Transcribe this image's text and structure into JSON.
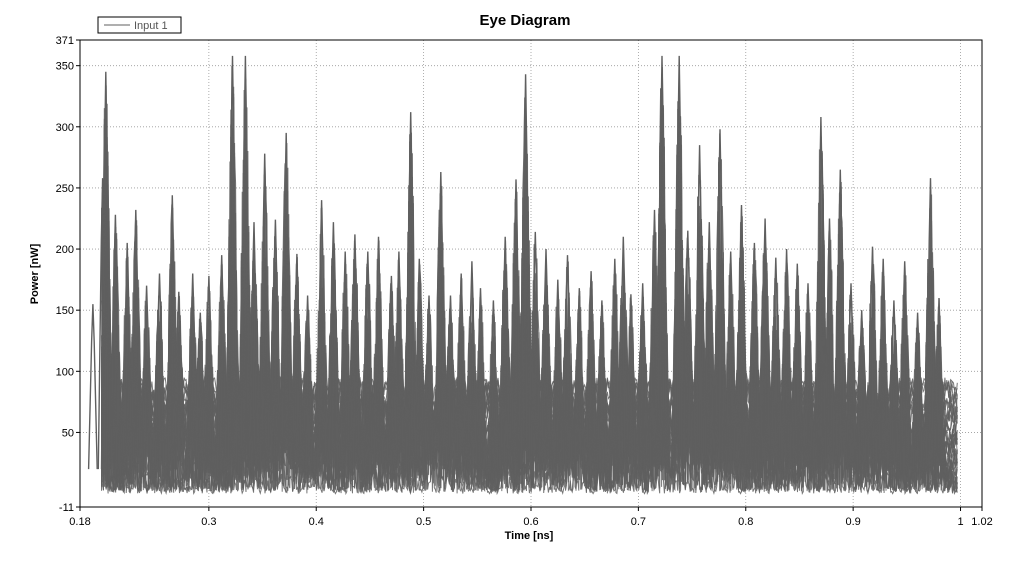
{
  "chart_data": {
    "type": "line",
    "title": "Eye Diagram",
    "xlabel": "Time [ns]",
    "ylabel": "Power [nW]",
    "xlim": [
      0.18,
      1.02
    ],
    "ylim": [
      -11,
      371
    ],
    "xticks": [
      0.18,
      0.3,
      0.4,
      0.5,
      0.6,
      0.7,
      0.8,
      0.9,
      1,
      1.02
    ],
    "xtick_labels": [
      "0.18",
      "0.3",
      "0.4",
      "0.5",
      "0.6",
      "0.7",
      "0.8",
      "0.9",
      "1",
      "1.02"
    ],
    "yticks": [
      -11,
      50,
      100,
      150,
      200,
      250,
      300,
      350,
      371
    ],
    "ytick_labels": [
      "-11",
      "50",
      "100",
      "150",
      "200",
      "250",
      "300",
      "350",
      "371"
    ],
    "grid": true,
    "legend_position": "top-left",
    "series": [
      {
        "name": "Input 1",
        "color": "#5f5f5f",
        "peaks": [
          {
            "x": 0.192,
            "y": 155
          },
          {
            "x": 0.201,
            "y": 258
          },
          {
            "x": 0.204,
            "y": 345
          },
          {
            "x": 0.213,
            "y": 228
          },
          {
            "x": 0.224,
            "y": 205
          },
          {
            "x": 0.232,
            "y": 232
          },
          {
            "x": 0.242,
            "y": 170
          },
          {
            "x": 0.254,
            "y": 180
          },
          {
            "x": 0.266,
            "y": 244
          },
          {
            "x": 0.272,
            "y": 165
          },
          {
            "x": 0.285,
            "y": 180
          },
          {
            "x": 0.292,
            "y": 148
          },
          {
            "x": 0.3,
            "y": 178
          },
          {
            "x": 0.312,
            "y": 195
          },
          {
            "x": 0.322,
            "y": 358
          },
          {
            "x": 0.334,
            "y": 358
          },
          {
            "x": 0.342,
            "y": 222
          },
          {
            "x": 0.352,
            "y": 278
          },
          {
            "x": 0.362,
            "y": 224
          },
          {
            "x": 0.372,
            "y": 295
          },
          {
            "x": 0.382,
            "y": 196
          },
          {
            "x": 0.392,
            "y": 162
          },
          {
            "x": 0.405,
            "y": 240
          },
          {
            "x": 0.416,
            "y": 222
          },
          {
            "x": 0.427,
            "y": 198
          },
          {
            "x": 0.436,
            "y": 212
          },
          {
            "x": 0.448,
            "y": 198
          },
          {
            "x": 0.458,
            "y": 210
          },
          {
            "x": 0.47,
            "y": 178
          },
          {
            "x": 0.477,
            "y": 198
          },
          {
            "x": 0.488,
            "y": 312
          },
          {
            "x": 0.496,
            "y": 192
          },
          {
            "x": 0.505,
            "y": 162
          },
          {
            "x": 0.516,
            "y": 263
          },
          {
            "x": 0.525,
            "y": 162
          },
          {
            "x": 0.535,
            "y": 180
          },
          {
            "x": 0.545,
            "y": 190
          },
          {
            "x": 0.553,
            "y": 168
          },
          {
            "x": 0.565,
            "y": 158
          },
          {
            "x": 0.576,
            "y": 210
          },
          {
            "x": 0.586,
            "y": 257
          },
          {
            "x": 0.595,
            "y": 343
          },
          {
            "x": 0.604,
            "y": 214
          },
          {
            "x": 0.614,
            "y": 200
          },
          {
            "x": 0.625,
            "y": 175
          },
          {
            "x": 0.634,
            "y": 195
          },
          {
            "x": 0.645,
            "y": 168
          },
          {
            "x": 0.656,
            "y": 182
          },
          {
            "x": 0.666,
            "y": 158
          },
          {
            "x": 0.678,
            "y": 192
          },
          {
            "x": 0.686,
            "y": 210
          },
          {
            "x": 0.693,
            "y": 163
          },
          {
            "x": 0.704,
            "y": 172
          },
          {
            "x": 0.715,
            "y": 232
          },
          {
            "x": 0.722,
            "y": 358
          },
          {
            "x": 0.738,
            "y": 358
          },
          {
            "x": 0.746,
            "y": 215
          },
          {
            "x": 0.757,
            "y": 285
          },
          {
            "x": 0.766,
            "y": 222
          },
          {
            "x": 0.776,
            "y": 298
          },
          {
            "x": 0.786,
            "y": 198
          },
          {
            "x": 0.796,
            "y": 236
          },
          {
            "x": 0.808,
            "y": 205
          },
          {
            "x": 0.818,
            "y": 225
          },
          {
            "x": 0.828,
            "y": 193
          },
          {
            "x": 0.838,
            "y": 200
          },
          {
            "x": 0.848,
            "y": 188
          },
          {
            "x": 0.858,
            "y": 172
          },
          {
            "x": 0.87,
            "y": 308
          },
          {
            "x": 0.878,
            "y": 225
          },
          {
            "x": 0.888,
            "y": 265
          },
          {
            "x": 0.898,
            "y": 172
          },
          {
            "x": 0.908,
            "y": 150
          },
          {
            "x": 0.918,
            "y": 202
          },
          {
            "x": 0.928,
            "y": 192
          },
          {
            "x": 0.938,
            "y": 158
          },
          {
            "x": 0.948,
            "y": 190
          },
          {
            "x": 0.96,
            "y": 148
          },
          {
            "x": 0.972,
            "y": 258
          },
          {
            "x": 0.98,
            "y": 160
          }
        ]
      }
    ]
  }
}
